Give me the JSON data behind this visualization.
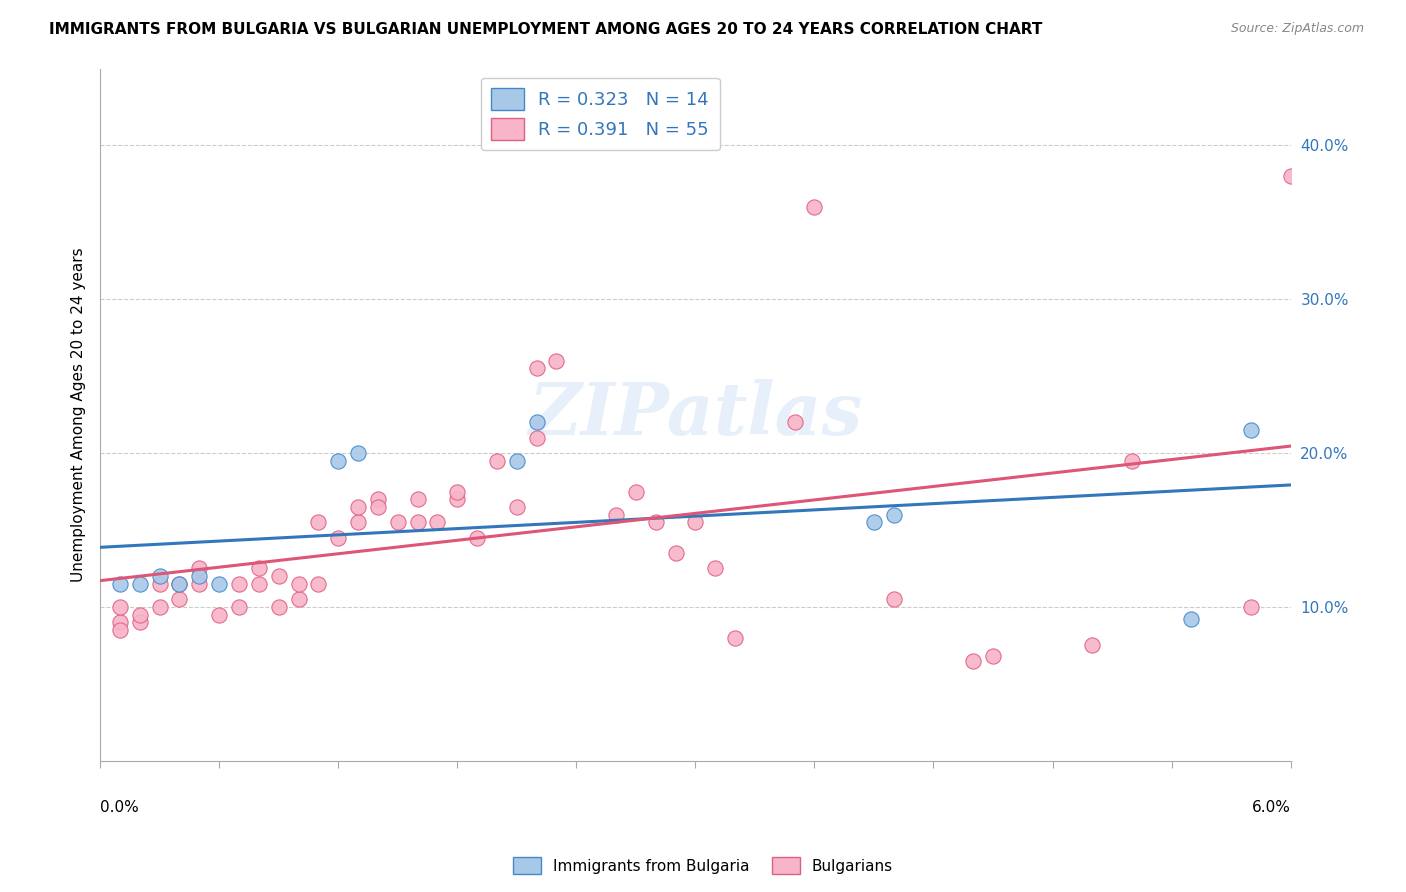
{
  "title": "IMMIGRANTS FROM BULGARIA VS BULGARIAN UNEMPLOYMENT AMONG AGES 20 TO 24 YEARS CORRELATION CHART",
  "source": "Source: ZipAtlas.com",
  "ylabel": "Unemployment Among Ages 20 to 24 years",
  "watermark": "ZIPatlas",
  "legend_blue_r": 0.323,
  "legend_blue_n": 14,
  "legend_pink_r": 0.391,
  "legend_pink_n": 55,
  "blue_fill": "#a8c8e8",
  "pink_fill": "#f8b4c8",
  "blue_edge": "#4488cc",
  "pink_edge": "#e06080",
  "blue_line": "#3377bb",
  "pink_line": "#dd5577",
  "blue_x": [
    0.001,
    0.002,
    0.003,
    0.004,
    0.005,
    0.006,
    0.012,
    0.013,
    0.021,
    0.022,
    0.039,
    0.04,
    0.055,
    0.058
  ],
  "blue_y": [
    0.115,
    0.115,
    0.12,
    0.115,
    0.12,
    0.115,
    0.195,
    0.2,
    0.195,
    0.22,
    0.155,
    0.16,
    0.092,
    0.215
  ],
  "pink_x": [
    0.001,
    0.001,
    0.001,
    0.002,
    0.002,
    0.003,
    0.003,
    0.004,
    0.004,
    0.005,
    0.005,
    0.006,
    0.007,
    0.007,
    0.008,
    0.008,
    0.009,
    0.009,
    0.01,
    0.01,
    0.011,
    0.011,
    0.012,
    0.013,
    0.013,
    0.014,
    0.014,
    0.015,
    0.016,
    0.016,
    0.017,
    0.018,
    0.018,
    0.019,
    0.02,
    0.021,
    0.022,
    0.022,
    0.023,
    0.026,
    0.027,
    0.028,
    0.029,
    0.03,
    0.031,
    0.032,
    0.035,
    0.036,
    0.04,
    0.044,
    0.045,
    0.05,
    0.052,
    0.058,
    0.06
  ],
  "pink_y": [
    0.09,
    0.1,
    0.085,
    0.09,
    0.095,
    0.1,
    0.115,
    0.105,
    0.115,
    0.115,
    0.125,
    0.095,
    0.1,
    0.115,
    0.115,
    0.125,
    0.1,
    0.12,
    0.105,
    0.115,
    0.115,
    0.155,
    0.145,
    0.155,
    0.165,
    0.17,
    0.165,
    0.155,
    0.17,
    0.155,
    0.155,
    0.17,
    0.175,
    0.145,
    0.195,
    0.165,
    0.21,
    0.255,
    0.26,
    0.16,
    0.175,
    0.155,
    0.135,
    0.155,
    0.125,
    0.08,
    0.22,
    0.36,
    0.105,
    0.065,
    0.068,
    0.075,
    0.195,
    0.1,
    0.38
  ],
  "xlim": [
    0.0,
    0.06
  ],
  "ylim": [
    0.0,
    0.45
  ],
  "yticks": [
    0.1,
    0.2,
    0.3,
    0.4
  ],
  "ytick_labels": [
    "10.0%",
    "20.0%",
    "30.0%",
    "40.0%"
  ],
  "bg": "#ffffff",
  "grid_color": "#cccccc",
  "title_fontsize": 11,
  "right_tick_color": "#3377bb"
}
